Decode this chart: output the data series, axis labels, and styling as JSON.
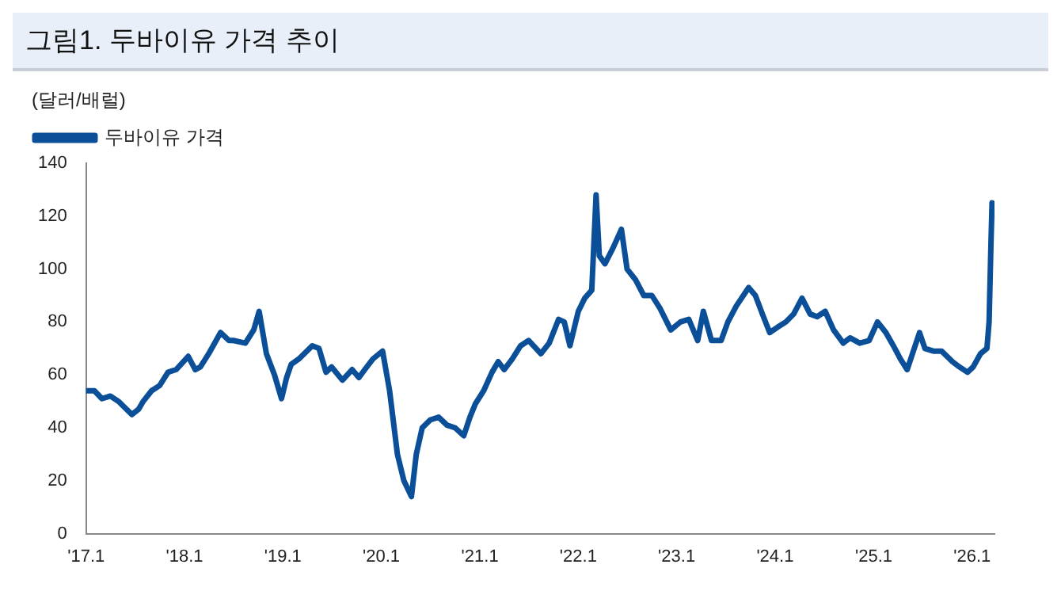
{
  "chart_data": {
    "type": "line",
    "title": "그림1. 두바이유 가격 추이",
    "ylabel": "(달러/배럴)",
    "legend": "top left",
    "grid": false,
    "marker": "none",
    "line_style": "solid",
    "x": [
      "2017-01-01",
      "2017-02-01",
      "2017-03-01",
      "2017-04-01",
      "2017-05-01",
      "2017-06-20",
      "2017-07-15",
      "2017-08-01",
      "2017-09-01",
      "2017-10-01",
      "2017-11-01",
      "2017-12-01",
      "2018-01-15",
      "2018-02-10",
      "2018-03-01",
      "2018-04-01",
      "2018-05-15",
      "2018-06-15",
      "2018-07-01",
      "2018-08-15",
      "2018-09-15",
      "2018-10-05",
      "2018-11-01",
      "2018-12-01",
      "2018-12-27",
      "2019-01-15",
      "2019-02-01",
      "2019-03-01",
      "2019-04-20",
      "2019-05-15",
      "2019-06-10",
      "2019-07-01",
      "2019-08-10",
      "2019-09-15",
      "2019-10-10",
      "2019-11-01",
      "2019-12-01",
      "2020-01-06",
      "2020-02-01",
      "2020-03-01",
      "2020-03-25",
      "2020-04-22",
      "2020-05-10",
      "2020-06-01",
      "2020-07-01",
      "2020-08-01",
      "2020-09-01",
      "2020-10-01",
      "2020-11-02",
      "2020-11-25",
      "2020-12-15",
      "2021-01-15",
      "2021-02-15",
      "2021-03-10",
      "2021-04-01",
      "2021-05-01",
      "2021-06-01",
      "2021-07-01",
      "2021-08-15",
      "2021-09-15",
      "2021-10-20",
      "2021-11-10",
      "2021-12-01",
      "2022-01-01",
      "2022-01-25",
      "2022-02-20",
      "2022-03-08",
      "2022-03-20",
      "2022-04-10",
      "2022-05-10",
      "2022-06-10",
      "2022-07-01",
      "2022-08-01",
      "2022-09-01",
      "2022-10-01",
      "2022-11-01",
      "2022-12-10",
      "2023-01-15",
      "2023-02-15",
      "2023-03-20",
      "2023-04-10",
      "2023-05-10",
      "2023-06-15",
      "2023-07-10",
      "2023-08-10",
      "2023-09-25",
      "2023-10-20",
      "2023-11-15",
      "2023-12-12",
      "2024-01-10",
      "2024-02-10",
      "2024-03-10",
      "2024-04-10",
      "2024-05-10",
      "2024-06-05",
      "2024-07-05",
      "2024-08-05",
      "2024-09-10",
      "2024-10-05",
      "2024-11-10",
      "2024-12-15",
      "2025-01-15",
      "2025-02-15",
      "2025-03-15",
      "2025-04-10",
      "2025-05-05",
      "2025-06-20",
      "2025-07-10",
      "2025-08-10",
      "2025-09-10",
      "2025-10-20",
      "2025-11-15",
      "2025-12-15",
      "2026-01-05",
      "2026-02-01",
      "2026-02-25",
      "2026-03-05",
      "2026-03-12",
      "2026-03-16"
    ],
    "series": [
      {
        "name": "두바이유 가격",
        "color": "#0b4f98",
        "values": [
          54,
          54,
          51,
          52,
          50,
          45,
          47,
          50,
          54,
          56,
          61,
          62,
          67,
          62,
          63,
          68,
          76,
          73,
          73,
          72,
          77,
          84,
          68,
          60,
          51,
          59,
          64,
          66,
          71,
          70,
          61,
          63,
          58,
          62,
          59,
          62,
          66,
          69,
          54,
          30,
          20,
          14,
          30,
          40,
          43,
          44,
          41,
          40,
          37,
          44,
          49,
          54,
          61,
          65,
          62,
          66,
          71,
          73,
          68,
          72,
          81,
          80,
          71,
          84,
          89,
          92,
          128,
          105,
          102,
          108,
          115,
          100,
          96,
          90,
          90,
          85,
          77,
          80,
          81,
          73,
          84,
          73,
          73,
          80,
          86,
          93,
          90,
          83,
          76,
          78,
          80,
          83,
          89,
          83,
          82,
          84,
          77,
          72,
          74,
          72,
          73,
          80,
          76,
          71,
          66,
          62,
          76,
          70,
          69,
          69,
          65,
          63,
          61,
          63,
          68,
          70,
          80,
          110,
          125
        ]
      }
    ],
    "xlim": [
      "2017-01-01",
      "2026-03-25"
    ],
    "xticks": [
      {
        "value": "2017-01-01",
        "label": "'17.1"
      },
      {
        "value": "2018-01-01",
        "label": "'18.1"
      },
      {
        "value": "2019-01-01",
        "label": "'19.1"
      },
      {
        "value": "2020-01-01",
        "label": "'20.1"
      },
      {
        "value": "2021-01-01",
        "label": "'21.1"
      },
      {
        "value": "2022-01-01",
        "label": "'22.1"
      },
      {
        "value": "2023-01-01",
        "label": "'23.1"
      },
      {
        "value": "2024-01-01",
        "label": "'24.1"
      },
      {
        "value": "2025-01-01",
        "label": "'25.1"
      },
      {
        "value": "2026-01-01",
        "label": "'26.1"
      }
    ],
    "ylim": [
      0,
      140
    ],
    "yticks": [
      0,
      20,
      40,
      60,
      80,
      100,
      120,
      140
    ]
  }
}
